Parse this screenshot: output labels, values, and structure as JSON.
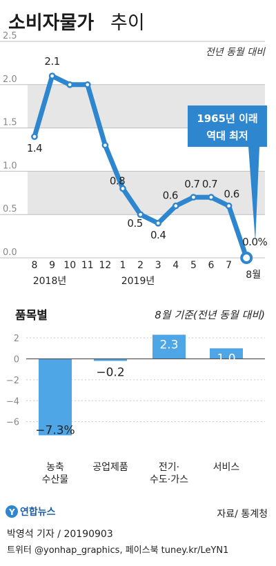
{
  "header": {
    "title_bold": "소비자물가",
    "title_light": "추이"
  },
  "chart_data": [
    {
      "type": "line",
      "note": "전년 동월 대비",
      "x": [
        "8",
        "9",
        "10",
        "11",
        "12",
        "1",
        "2",
        "3",
        "4",
        "5",
        "6",
        "7",
        "8월"
      ],
      "year_labels": [
        "2018년",
        "2019년"
      ],
      "values": [
        1.4,
        2.1,
        2.0,
        2.0,
        1.3,
        0.8,
        0.5,
        0.4,
        0.6,
        0.7,
        0.7,
        0.6,
        0.0
      ],
      "data_labels": [
        "1.4",
        "2.1",
        "",
        "",
        "",
        "0.8",
        "0.5",
        "0.4",
        "0.6",
        "0.7",
        "0.7",
        "0.6",
        "0.0%"
      ],
      "yticks": [
        "0.0",
        "0.5",
        "1.0",
        "1.5",
        "2.0",
        "2.5"
      ],
      "ylim": [
        0,
        2.5
      ],
      "callout": [
        "1965년 이래",
        "역대 최저"
      ],
      "colors": {
        "line": "#2e86cf",
        "band": "#e6e6e6",
        "callout": "#2e86cf"
      }
    },
    {
      "type": "bar",
      "title": "품목별",
      "note": "8월 기준(전년 동월 대비)",
      "categories": [
        [
          "농축",
          "수산물"
        ],
        [
          "공업제품"
        ],
        [
          "전기·",
          "수도·가스"
        ],
        [
          "서비스"
        ]
      ],
      "values": [
        -7.3,
        -0.2,
        2.3,
        1.0
      ],
      "data_labels": [
        "−7.3%",
        "−0.2",
        "2.3",
        "1.0"
      ],
      "yticks": [
        "2",
        "0",
        "−2",
        "−4",
        "−6"
      ],
      "ylim": [
        -7.6,
        2.4
      ],
      "colors": {
        "bar": "#4ea6e6",
        "zero_line": "#555555"
      }
    }
  ],
  "footer": {
    "logo_text": "연합뉴스",
    "source": "자료/ 통계청",
    "credit_line1": "박영석 기자 /  20190903",
    "credit_line2": "트위터 @yonhap_graphics, 페이스북 tuney.kr/LeYN1"
  }
}
